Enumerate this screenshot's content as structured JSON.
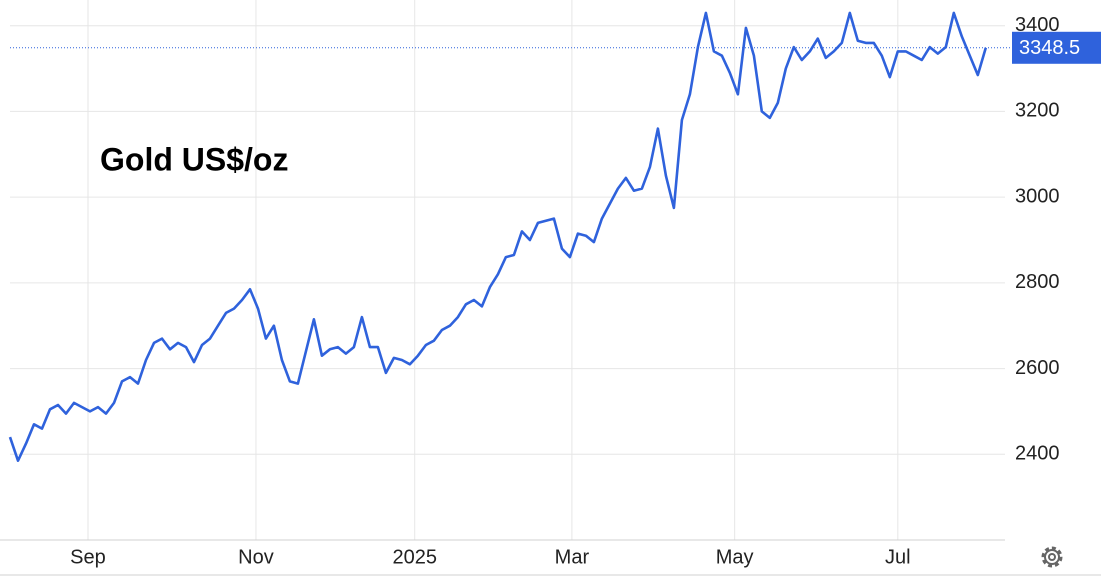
{
  "chart_data": {
    "type": "line",
    "title": "Gold US$/oz",
    "color": "#2f62dc",
    "grid": true,
    "ylim": [
      2200,
      3460
    ],
    "yticks": [
      2400,
      2600,
      2800,
      3000,
      3200,
      3400
    ],
    "xlim": [
      0,
      124.4
    ],
    "xticks": [
      {
        "value": 9.75,
        "label": "Sep"
      },
      {
        "value": 30.75,
        "label": "Nov"
      },
      {
        "value": 50.6,
        "label": "2025"
      },
      {
        "value": 70.25,
        "label": "Mar"
      },
      {
        "value": 90.6,
        "label": "May"
      },
      {
        "value": 111,
        "label": "Jul"
      }
    ],
    "values": [
      2440,
      2385,
      2425,
      2470,
      2460,
      2505,
      2515,
      2495,
      2520,
      2510,
      2500,
      2510,
      2495,
      2520,
      2570,
      2580,
      2565,
      2620,
      2660,
      2670,
      2645,
      2660,
      2650,
      2615,
      2655,
      2670,
      2700,
      2730,
      2740,
      2760,
      2785,
      2740,
      2670,
      2700,
      2620,
      2570,
      2565,
      2640,
      2715,
      2630,
      2645,
      2650,
      2635,
      2650,
      2720,
      2650,
      2650,
      2590,
      2625,
      2620,
      2610,
      2630,
      2655,
      2665,
      2690,
      2700,
      2720,
      2750,
      2760,
      2745,
      2790,
      2820,
      2860,
      2865,
      2920,
      2900,
      2940,
      2945,
      2950,
      2880,
      2860,
      2915,
      2910,
      2895,
      2950,
      2985,
      3020,
      3045,
      3015,
      3020,
      3070,
      3160,
      3050,
      2975,
      3180,
      3240,
      3350,
      3430,
      3340,
      3330,
      3290,
      3240,
      3395,
      3330,
      3200,
      3185,
      3220,
      3300,
      3350,
      3320,
      3340,
      3370,
      3325,
      3340,
      3360,
      3430,
      3365,
      3360,
      3360,
      3330,
      3280,
      3340,
      3340,
      3330,
      3320,
      3350,
      3335,
      3350,
      3430,
      3375,
      3330,
      3285,
      3348.5
    ]
  }
}
